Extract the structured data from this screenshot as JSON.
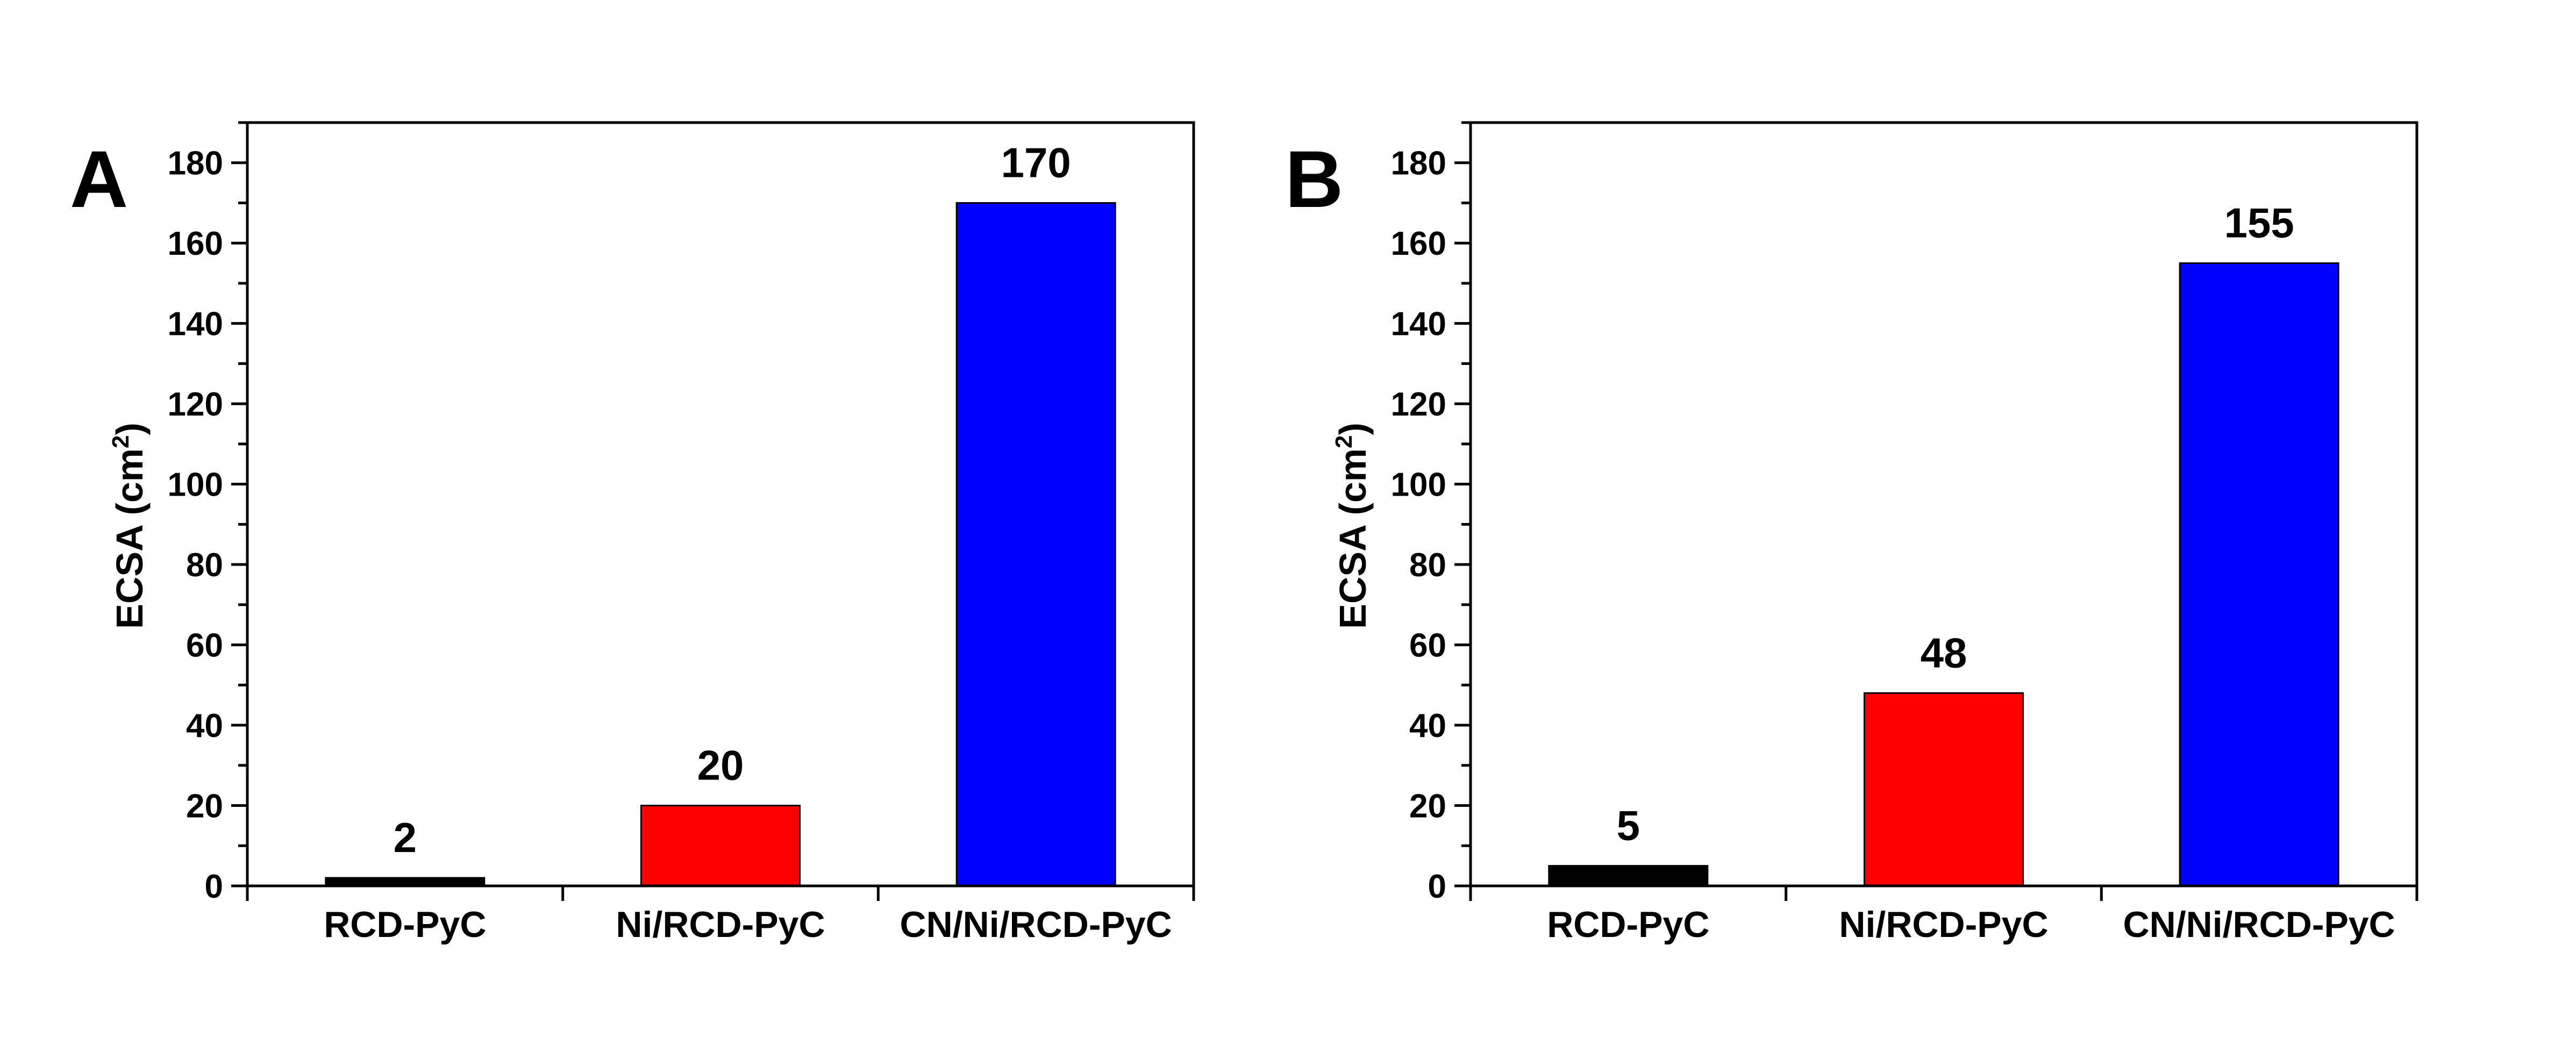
{
  "chart_data": [
    {
      "panel": "A",
      "type": "bar",
      "categories": [
        "RCD-PyC",
        "Ni/RCD-PyC",
        "CN/Ni/RCD-PyC"
      ],
      "values": [
        2,
        20,
        170
      ],
      "value_labels": [
        "2",
        "20",
        "170"
      ],
      "colors": [
        "#000000",
        "#ff0000",
        "#0000ff"
      ],
      "ylabel": "ECSA (cm",
      "ylabel_sup": "2",
      "ylabel_end": ")",
      "ylim": [
        0,
        190
      ],
      "yticks": [
        0,
        20,
        40,
        60,
        80,
        100,
        120,
        140,
        160,
        180
      ],
      "ytick_labels": [
        "0",
        "20",
        "40",
        "60",
        "80",
        "100",
        "120",
        "140",
        "160",
        "180"
      ],
      "grid": false
    },
    {
      "panel": "B",
      "type": "bar",
      "categories": [
        "RCD-PyC",
        "Ni/RCD-PyC",
        "CN/Ni/RCD-PyC"
      ],
      "values": [
        5,
        48,
        155
      ],
      "value_labels": [
        "5",
        "48",
        "155"
      ],
      "colors": [
        "#000000",
        "#ff0000",
        "#0000ff"
      ],
      "ylabel": "ECSA (cm",
      "ylabel_sup": "2",
      "ylabel_end": ")",
      "ylim": [
        0,
        190
      ],
      "yticks": [
        0,
        20,
        40,
        60,
        80,
        100,
        120,
        140,
        160,
        180
      ],
      "ytick_labels": [
        "0",
        "20",
        "40",
        "60",
        "80",
        "100",
        "120",
        "140",
        "160",
        "180"
      ],
      "grid": false
    }
  ]
}
